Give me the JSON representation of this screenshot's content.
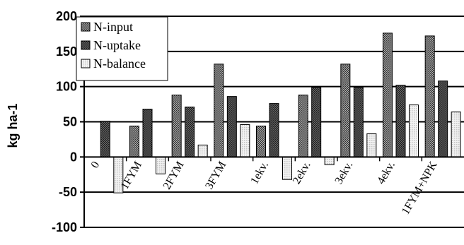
{
  "chart_data": {
    "type": "bar",
    "title": "",
    "xlabel": "",
    "ylabel": "kg ha-1",
    "ylim": [
      -100,
      200
    ],
    "yticks": [
      -100,
      -50,
      0,
      50,
      100,
      150,
      200
    ],
    "grid": true,
    "legend_position": "top-left",
    "categories": [
      "0",
      "1FYM",
      "2FYM",
      "3FYM",
      "1ekv.",
      "2ekv.",
      "3ekv.",
      "4ekv.",
      "1FYM+NPK"
    ],
    "series": [
      {
        "name": "N-input",
        "values": [
          0,
          44,
          88,
          132,
          44,
          88,
          132,
          176,
          172
        ],
        "color": "#7f7f7f",
        "pattern": "dots-dark"
      },
      {
        "name": "N-uptake",
        "values": [
          51,
          68,
          71,
          86,
          76,
          99,
          99,
          102,
          108
        ],
        "color": "#555555",
        "pattern": "dots-darker"
      },
      {
        "name": "N-balance",
        "values": [
          -51,
          -24,
          17,
          46,
          -32,
          -11,
          33,
          74,
          64
        ],
        "color": "#dcdcdc",
        "pattern": "dots-light"
      }
    ]
  }
}
